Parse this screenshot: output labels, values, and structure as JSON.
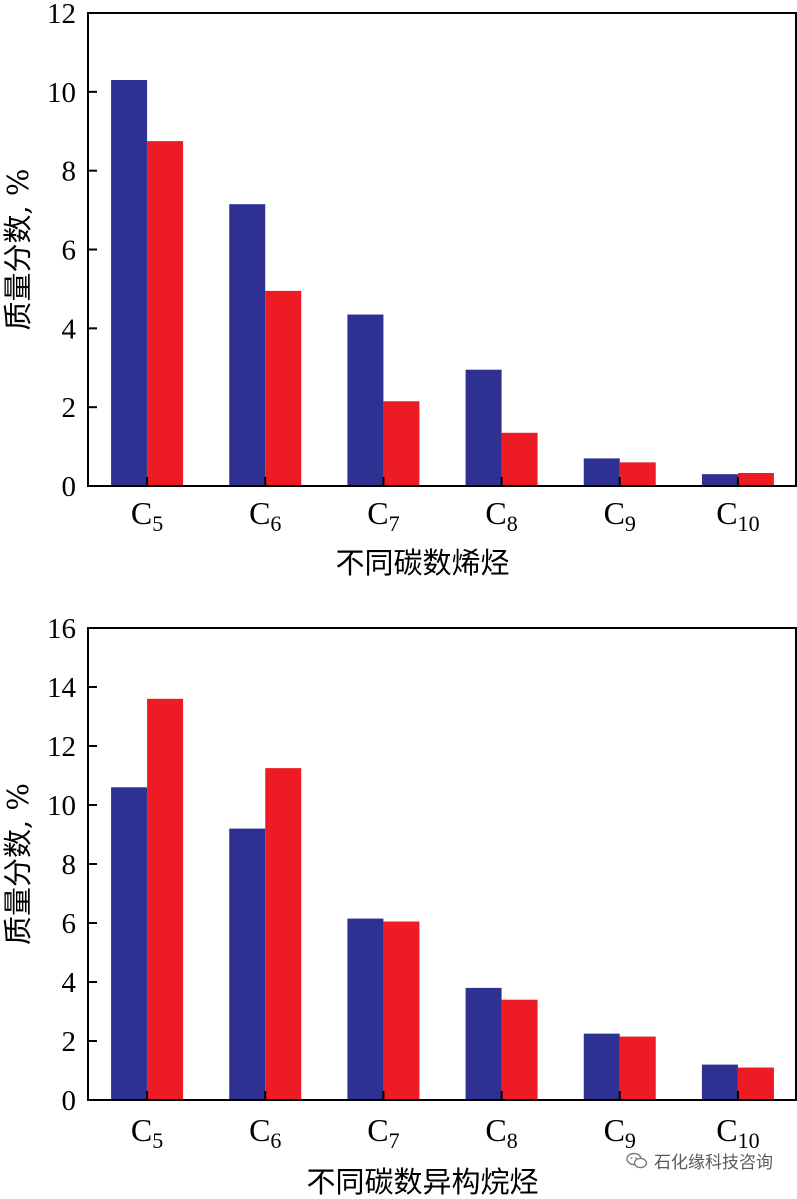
{
  "colors": {
    "series_a": "#2e3192",
    "series_b": "#ed1c24",
    "axis": "#000000"
  },
  "watermark": {
    "icon": "wechat-icon",
    "text": "石化缘科技咨询"
  },
  "chart_data": [
    {
      "type": "bar",
      "title": "",
      "xlabel": "不同碳数烯烃",
      "ylabel": "质量分数, %",
      "ylim": [
        0,
        12
      ],
      "yticks": [
        "0",
        "2",
        "4",
        "6",
        "8",
        "10",
        "12"
      ],
      "categories": [
        {
          "base": "C",
          "sub": "5"
        },
        {
          "base": "C",
          "sub": "6"
        },
        {
          "base": "C",
          "sub": "7"
        },
        {
          "base": "C",
          "sub": "8"
        },
        {
          "base": "C",
          "sub": "9"
        },
        {
          "base": "C",
          "sub": "10"
        }
      ],
      "series": [
        {
          "color": "#2e3192",
          "values": [
            10.3,
            7.15,
            4.35,
            2.95,
            0.7,
            0.3
          ]
        },
        {
          "color": "#ed1c24",
          "values": [
            8.75,
            4.95,
            2.15,
            1.35,
            0.6,
            0.33
          ]
        }
      ],
      "grid": false,
      "legend": "none"
    },
    {
      "type": "bar",
      "title": "",
      "xlabel": "不同碳数异构烷烃",
      "ylabel": "质量分数, %",
      "ylim": [
        0,
        16
      ],
      "yticks": [
        "0",
        "2",
        "4",
        "6",
        "8",
        "10",
        "12",
        "14",
        "16"
      ],
      "categories": [
        {
          "base": "C",
          "sub": "5"
        },
        {
          "base": "C",
          "sub": "6"
        },
        {
          "base": "C",
          "sub": "7"
        },
        {
          "base": "C",
          "sub": "8"
        },
        {
          "base": "C",
          "sub": "9"
        },
        {
          "base": "C",
          "sub": "10"
        }
      ],
      "series": [
        {
          "color": "#2e3192",
          "values": [
            10.6,
            9.2,
            6.15,
            3.8,
            2.25,
            1.2
          ]
        },
        {
          "color": "#ed1c24",
          "values": [
            13.6,
            11.25,
            6.05,
            3.4,
            2.15,
            1.1
          ]
        }
      ],
      "grid": false,
      "legend": "none"
    }
  ]
}
